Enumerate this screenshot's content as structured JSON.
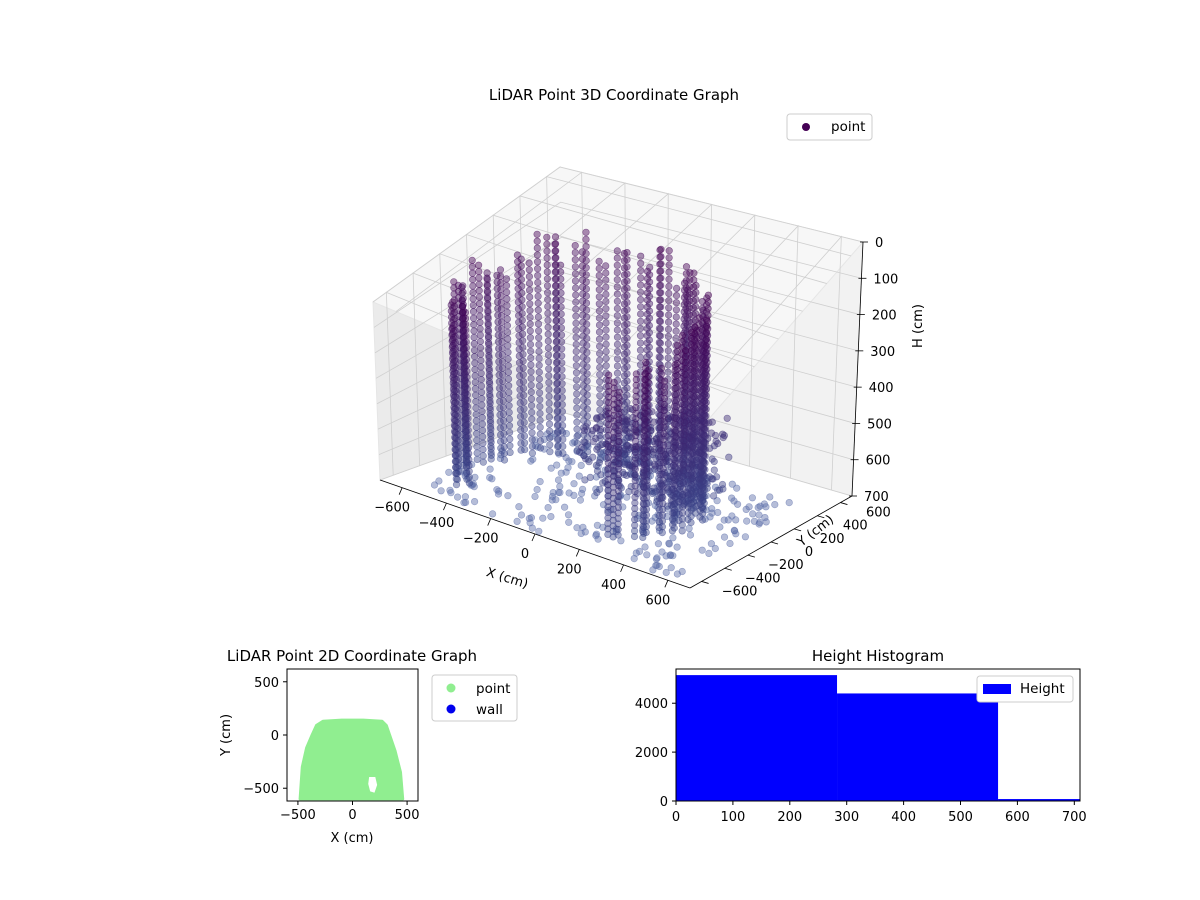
{
  "chart_data": [
    {
      "id": "3d",
      "type": "scatter",
      "projection": "3d",
      "title": "LiDAR Point 3D Coordinate Graph",
      "xlabel": "X (cm)",
      "ylabel": "Y (cm)",
      "zlabel": "H (cm)",
      "xlim": [
        -700,
        700
      ],
      "ylim": [
        -700,
        700
      ],
      "zlim": [
        0,
        700
      ],
      "z_inverted": true,
      "xticks": [
        -600,
        -400,
        -200,
        0,
        200,
        400,
        600
      ],
      "yticks": [
        -600,
        -400,
        -200,
        0,
        200,
        400,
        600
      ],
      "zticks": [
        0,
        100,
        200,
        300,
        400,
        500,
        600,
        700
      ],
      "xtick_labels": [
        "−600",
        "−400",
        "−200",
        "0",
        "200",
        "400",
        "600"
      ],
      "ytick_labels": [
        "−600",
        "−400",
        "−200",
        "0",
        "200",
        "400",
        "600"
      ],
      "ztick_labels": [
        "0",
        "100",
        "200",
        "300",
        "400",
        "500",
        "600",
        "700"
      ],
      "grid": true,
      "colormap": "viridis",
      "legend": {
        "position": "top-right",
        "entries": [
          {
            "label": "point",
            "color": "#440154"
          }
        ]
      },
      "series": [
        {
          "name": "point",
          "structure": "scanned walls around a room: vertical point columns at height 0–700 cm along an ellipse; floor points at height ≈ 700 cm",
          "wall": {
            "center": [
              -100,
              -150
            ],
            "radius_x": 480,
            "radius_y": 520,
            "h_range": [
              0,
              700
            ]
          },
          "floor": {
            "x_range": [
              -600,
              600
            ],
            "y_range": [
              -650,
              500
            ],
            "h": 700
          }
        }
      ]
    },
    {
      "id": "2d",
      "type": "scatter",
      "title": "LiDAR Point 2D Coordinate Graph",
      "xlabel": "X (cm)",
      "ylabel": "Y (cm)",
      "xlim": [
        -600,
        600
      ],
      "ylim": [
        -620,
        620
      ],
      "xticks": [
        -500,
        0,
        500
      ],
      "yticks": [
        -500,
        0,
        500
      ],
      "xtick_labels": [
        "−500",
        "0",
        "500"
      ],
      "ytick_labels": [
        "−500",
        "0",
        "500"
      ],
      "legend": {
        "position": "outside-right",
        "entries": [
          {
            "label": "point",
            "color": "#90ee90"
          },
          {
            "label": "wall",
            "color": "#0000ee"
          }
        ]
      },
      "region": {
        "name": "point",
        "color": "#90ee90",
        "outline": [
          [
            -480,
            -600
          ],
          [
            -460,
            -300
          ],
          [
            -420,
            -120
          ],
          [
            -370,
            0
          ],
          [
            -330,
            90
          ],
          [
            -270,
            130
          ],
          [
            -100,
            140
          ],
          [
            100,
            140
          ],
          [
            270,
            130
          ],
          [
            310,
            90
          ],
          [
            340,
            0
          ],
          [
            390,
            -150
          ],
          [
            440,
            -350
          ],
          [
            460,
            -600
          ]
        ],
        "holes": [
          [
            [
              140,
              -380
            ],
            [
              220,
              -380
            ],
            [
              240,
              -470
            ],
            [
              210,
              -560
            ],
            [
              150,
              -540
            ],
            [
              130,
              -460
            ]
          ]
        ]
      }
    },
    {
      "id": "hist",
      "type": "bar",
      "subtype": "histogram",
      "title": "Height Histogram",
      "xlim": [
        0,
        710
      ],
      "ylim": [
        0,
        5400
      ],
      "xticks": [
        0,
        100,
        200,
        300,
        400,
        500,
        600,
        700
      ],
      "yticks": [
        0,
        2000,
        4000
      ],
      "color": "#0000ff",
      "legend": {
        "position": "top-right",
        "entries": [
          {
            "label": "Height",
            "color": "#0000ff"
          }
        ]
      },
      "bins": [
        {
          "x0": 0,
          "x1": 283,
          "count": 5150
        },
        {
          "x0": 283,
          "x1": 566,
          "count": 4400
        },
        {
          "x0": 566,
          "x1": 710,
          "count": 80
        }
      ]
    }
  ]
}
